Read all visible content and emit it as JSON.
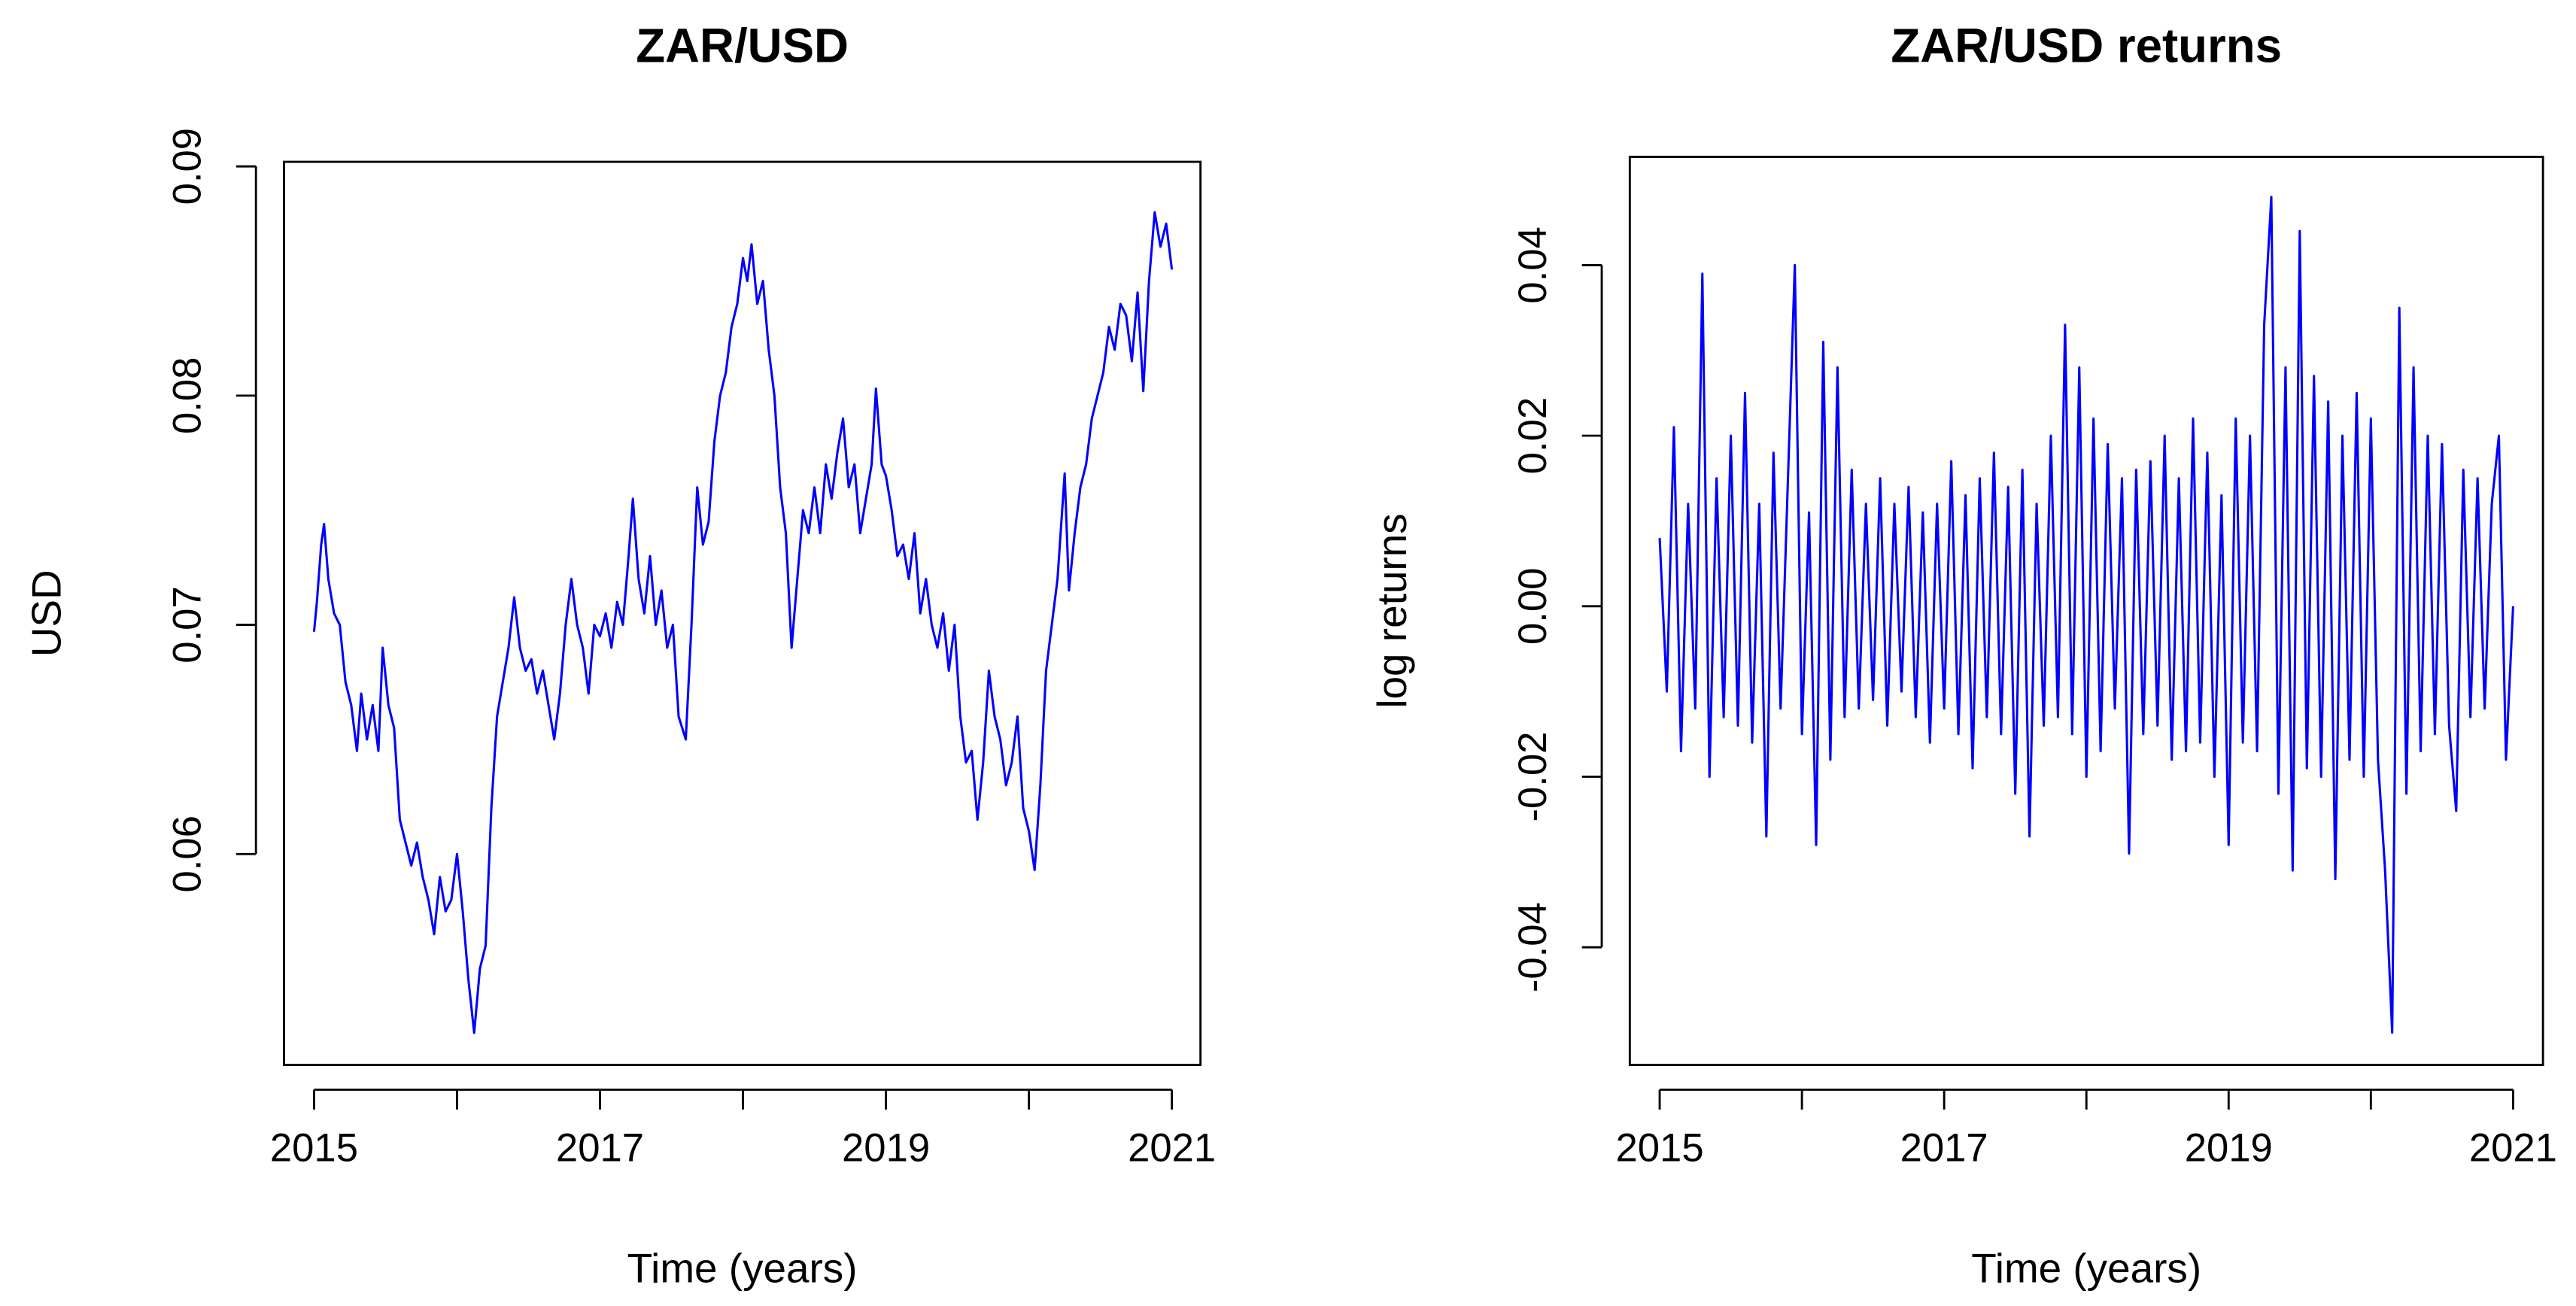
{
  "chart_data": [
    {
      "type": "line",
      "title": "ZAR/USD",
      "xlabel": "Time (years)",
      "ylabel": "USD",
      "x": [
        2015.0,
        2015.02,
        2015.05,
        2015.07,
        2015.1,
        2015.14,
        2015.18,
        2015.22,
        2015.26,
        2015.3,
        2015.33,
        2015.37,
        2015.41,
        2015.45,
        2015.48,
        2015.52,
        2015.56,
        2015.6,
        2015.64,
        2015.68,
        2015.72,
        2015.76,
        2015.8,
        2015.84,
        2015.88,
        2015.92,
        2015.96,
        2016.0,
        2016.04,
        2016.08,
        2016.12,
        2016.16,
        2016.2,
        2016.24,
        2016.28,
        2016.32,
        2016.36,
        2016.4,
        2016.44,
        2016.48,
        2016.52,
        2016.56,
        2016.6,
        2016.64,
        2016.68,
        2016.72,
        2016.76,
        2016.8,
        2016.84,
        2016.88,
        2016.92,
        2016.96,
        2017.0,
        2017.04,
        2017.08,
        2017.12,
        2017.16,
        2017.2,
        2017.23,
        2017.27,
        2017.31,
        2017.35,
        2017.39,
        2017.43,
        2017.47,
        2017.51,
        2017.55,
        2017.6,
        2017.64,
        2017.68,
        2017.72,
        2017.76,
        2017.8,
        2017.84,
        2017.88,
        2017.92,
        2017.96,
        2018.0,
        2018.03,
        2018.06,
        2018.1,
        2018.14,
        2018.18,
        2018.22,
        2018.26,
        2018.3,
        2018.34,
        2018.38,
        2018.42,
        2018.46,
        2018.5,
        2018.54,
        2018.58,
        2018.62,
        2018.66,
        2018.7,
        2018.74,
        2018.78,
        2018.82,
        2018.86,
        2018.9,
        2018.93,
        2018.97,
        2019.0,
        2019.04,
        2019.08,
        2019.12,
        2019.16,
        2019.2,
        2019.24,
        2019.28,
        2019.32,
        2019.36,
        2019.4,
        2019.44,
        2019.48,
        2019.52,
        2019.56,
        2019.6,
        2019.64,
        2019.68,
        2019.72,
        2019.76,
        2019.8,
        2019.84,
        2019.88,
        2019.92,
        2019.96,
        2020.0,
        2020.04,
        2020.08,
        2020.12,
        2020.16,
        2020.2,
        2020.25,
        2020.28,
        2020.32,
        2020.36,
        2020.4,
        2020.44,
        2020.48,
        2020.52,
        2020.56,
        2020.6,
        2020.64,
        2020.68,
        2020.72,
        2020.76,
        2020.8,
        2020.84,
        2020.88,
        2020.92,
        2020.96,
        2021.0
      ],
      "series": [
        {
          "color": "#0000ff",
          "values": [
            0.0697,
            0.071,
            0.0735,
            0.0744,
            0.072,
            0.0705,
            0.07,
            0.0675,
            0.0665,
            0.0645,
            0.067,
            0.065,
            0.0665,
            0.0645,
            0.069,
            0.0665,
            0.0655,
            0.0615,
            0.0605,
            0.0595,
            0.0605,
            0.059,
            0.058,
            0.0565,
            0.059,
            0.0575,
            0.058,
            0.06,
            0.0575,
            0.0545,
            0.0522,
            0.055,
            0.056,
            0.062,
            0.066,
            0.0675,
            0.069,
            0.0712,
            0.069,
            0.068,
            0.0685,
            0.067,
            0.068,
            0.0665,
            0.065,
            0.067,
            0.07,
            0.072,
            0.07,
            0.069,
            0.067,
            0.07,
            0.0695,
            0.0705,
            0.069,
            0.071,
            0.07,
            0.073,
            0.0755,
            0.072,
            0.0705,
            0.073,
            0.07,
            0.0715,
            0.069,
            0.07,
            0.066,
            0.065,
            0.07,
            0.076,
            0.0735,
            0.0745,
            0.078,
            0.08,
            0.081,
            0.083,
            0.084,
            0.086,
            0.085,
            0.0866,
            0.084,
            0.085,
            0.082,
            0.08,
            0.076,
            0.074,
            0.069,
            0.072,
            0.075,
            0.074,
            0.076,
            0.074,
            0.077,
            0.0755,
            0.0775,
            0.079,
            0.076,
            0.077,
            0.074,
            0.0755,
            0.077,
            0.0803,
            0.077,
            0.0765,
            0.075,
            0.073,
            0.0735,
            0.072,
            0.074,
            0.0705,
            0.072,
            0.07,
            0.069,
            0.0705,
            0.068,
            0.07,
            0.066,
            0.064,
            0.0645,
            0.0615,
            0.064,
            0.068,
            0.066,
            0.065,
            0.063,
            0.064,
            0.066,
            0.062,
            0.061,
            0.0593,
            0.063,
            0.068,
            0.07,
            0.072,
            0.0766,
            0.0715,
            0.074,
            0.076,
            0.077,
            0.079,
            0.08,
            0.081,
            0.083,
            0.082,
            0.084,
            0.0835,
            0.0815,
            0.0845,
            0.0802,
            0.085,
            0.088,
            0.0865,
            0.0875,
            0.0855
          ]
        }
      ],
      "xlim": [
        2014.79,
        2021.2
      ],
      "xticks": [
        2015,
        2017,
        2019,
        2021
      ],
      "xminor_ticks": [
        2016,
        2018,
        2020
      ],
      "ylim": [
        0.0508,
        0.0902
      ],
      "yticks": [
        0.06,
        0.07,
        0.08,
        0.09
      ]
    },
    {
      "type": "line",
      "title": "ZAR/USD returns",
      "xlabel": "Time (years)",
      "ylabel": "log returns",
      "x": [
        2015.0,
        2015.05,
        2015.1,
        2015.15,
        2015.2,
        2015.25,
        2015.3,
        2015.35,
        2015.4,
        2015.45,
        2015.5,
        2015.55,
        2015.6,
        2015.65,
        2015.7,
        2015.75,
        2015.8,
        2015.85,
        2015.9,
        2015.95,
        2016.0,
        2016.05,
        2016.1,
        2016.15,
        2016.2,
        2016.25,
        2016.3,
        2016.35,
        2016.4,
        2016.45,
        2016.5,
        2016.55,
        2016.6,
        2016.65,
        2016.7,
        2016.75,
        2016.8,
        2016.85,
        2016.9,
        2016.95,
        2017.0,
        2017.05,
        2017.1,
        2017.15,
        2017.2,
        2017.25,
        2017.3,
        2017.35,
        2017.4,
        2017.45,
        2017.5,
        2017.55,
        2017.6,
        2017.65,
        2017.7,
        2017.75,
        2017.8,
        2017.85,
        2017.9,
        2017.95,
        2018.0,
        2018.05,
        2018.1,
        2018.15,
        2018.2,
        2018.25,
        2018.3,
        2018.35,
        2018.4,
        2018.45,
        2018.5,
        2018.55,
        2018.6,
        2018.65,
        2018.7,
        2018.75,
        2018.8,
        2018.85,
        2018.9,
        2018.95,
        2019.0,
        2019.05,
        2019.1,
        2019.15,
        2019.2,
        2019.25,
        2019.3,
        2019.35,
        2019.4,
        2019.45,
        2019.5,
        2019.55,
        2019.6,
        2019.65,
        2019.7,
        2019.75,
        2019.8,
        2019.85,
        2019.9,
        2019.95,
        2020.0,
        2020.05,
        2020.1,
        2020.15,
        2020.2,
        2020.25,
        2020.3,
        2020.35,
        2020.4,
        2020.45,
        2020.5,
        2020.55,
        2020.6,
        2020.65,
        2020.7,
        2020.75,
        2020.8,
        2020.85,
        2020.9,
        2020.95,
        2021.0
      ],
      "series": [
        {
          "color": "#0000ff",
          "values": [
            0.008,
            -0.01,
            0.021,
            -0.017,
            0.012,
            -0.012,
            0.039,
            -0.02,
            0.015,
            -0.013,
            0.02,
            -0.014,
            0.025,
            -0.016,
            0.012,
            -0.027,
            0.018,
            -0.012,
            0.014,
            0.04,
            -0.015,
            0.011,
            -0.028,
            0.031,
            -0.018,
            0.028,
            -0.013,
            0.016,
            -0.012,
            0.012,
            -0.011,
            0.015,
            -0.014,
            0.012,
            -0.01,
            0.014,
            -0.013,
            0.011,
            -0.016,
            0.012,
            -0.012,
            0.017,
            -0.015,
            0.013,
            -0.019,
            0.015,
            -0.013,
            0.018,
            -0.015,
            0.014,
            -0.022,
            0.016,
            -0.027,
            0.012,
            -0.014,
            0.02,
            -0.013,
            0.033,
            -0.015,
            0.028,
            -0.02,
            0.022,
            -0.017,
            0.019,
            -0.012,
            0.015,
            -0.029,
            0.016,
            -0.015,
            0.017,
            -0.014,
            0.02,
            -0.018,
            0.015,
            -0.017,
            0.022,
            -0.016,
            0.018,
            -0.02,
            0.013,
            -0.028,
            0.022,
            -0.016,
            0.02,
            -0.017,
            0.033,
            0.048,
            -0.022,
            0.028,
            -0.031,
            0.044,
            -0.019,
            0.027,
            -0.02,
            0.024,
            -0.032,
            0.02,
            -0.018,
            0.025,
            -0.02,
            0.022,
            -0.018,
            -0.031,
            -0.05,
            0.035,
            -0.022,
            0.028,
            -0.017,
            0.02,
            -0.015,
            0.019,
            -0.014,
            -0.024,
            0.016,
            -0.013,
            0.015,
            -0.012,
            0.012,
            0.02,
            -0.018,
            0.0
          ]
        }
      ],
      "xlim": [
        2014.79,
        2021.21
      ],
      "xticks": [
        2015,
        2017,
        2019,
        2021
      ],
      "xminor_ticks": [
        2016,
        2018,
        2020
      ],
      "ylim": [
        -0.0538,
        0.0527
      ],
      "yticks": [
        {
          "value": -0.04,
          "label": "-0.04"
        },
        {
          "value": -0.02,
          "label": "-0.02"
        },
        {
          "value": 0,
          "label": "0.00"
        },
        {
          "value": 0.02,
          "label": "0.02"
        },
        {
          "value": 0.04,
          "label": "0.04"
        }
      ]
    }
  ]
}
